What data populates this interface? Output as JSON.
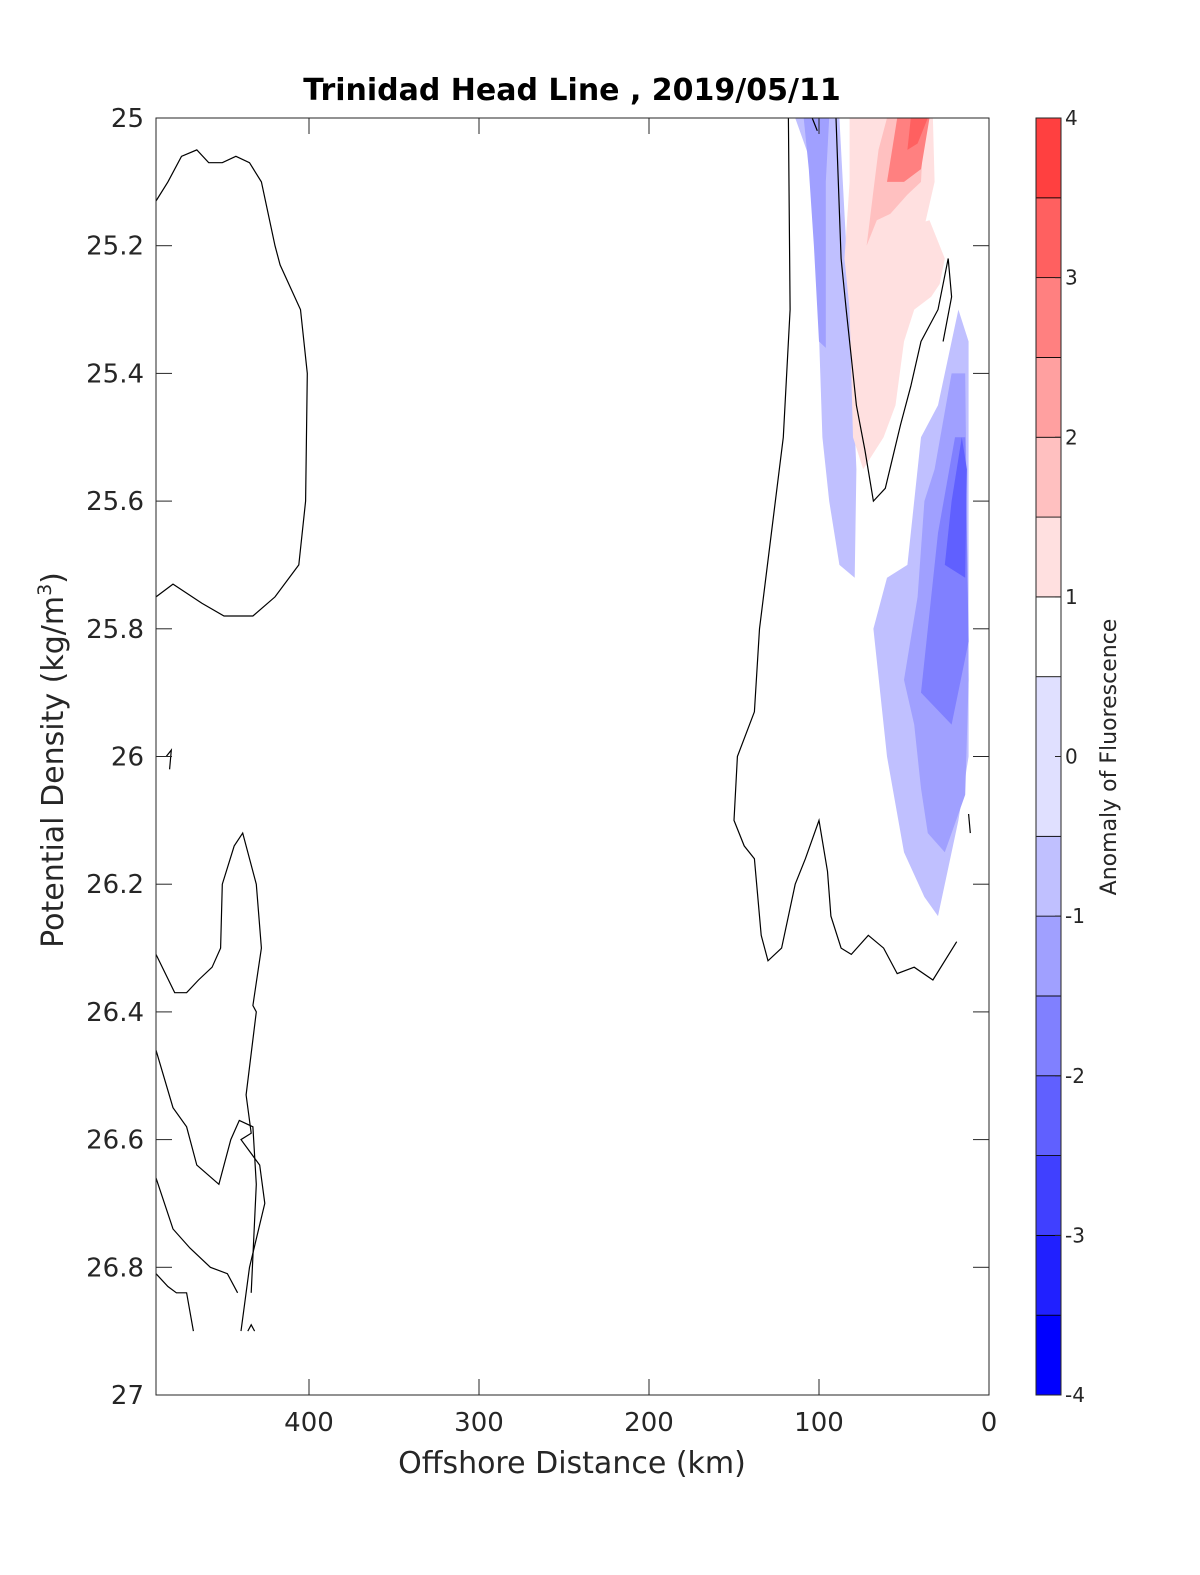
{
  "chart_data": {
    "type": "contour",
    "title": "Trinidad Head Line , 2019/05/11",
    "xlabel": "Offshore Distance (km)",
    "ylabel_main": "Potential Density (kg/m",
    "ylabel_sup": "3",
    "ylabel_close": ")",
    "xlim": [
      490,
      0
    ],
    "ylim": [
      25,
      27
    ],
    "x_reversed": true,
    "y_reversed": true,
    "xticks": [
      400,
      300,
      200,
      100,
      0
    ],
    "xtick_labels": [
      "400",
      "300",
      "200",
      "100",
      "0"
    ],
    "yticks": [
      25,
      25.2,
      25.4,
      25.6,
      25.8,
      26,
      26.2,
      26.4,
      26.6,
      26.8,
      27
    ],
    "ytick_labels": [
      "25",
      "25.2",
      "25.4",
      "25.6",
      "25.8",
      "26",
      "26.2",
      "26.4",
      "26.6",
      "26.8",
      "27"
    ],
    "colorbar": {
      "label": "Anomaly of Fluorescence",
      "range": [
        -4,
        4
      ],
      "ticks": [
        4,
        3,
        2,
        1,
        0,
        -1,
        -2,
        -3,
        -4
      ],
      "tick_labels": [
        "4",
        "3",
        "2",
        "1",
        "0",
        "-1",
        "-2",
        "-3",
        "-4"
      ],
      "level_edges": [
        -4,
        -3.5,
        -3,
        -2.5,
        -2,
        -1.5,
        -1,
        -0.5,
        0.5,
        1,
        1.5,
        2,
        2.5,
        3,
        3.5,
        4
      ],
      "level_colors": [
        "#0000ff",
        "#2020ff",
        "#4040ff",
        "#6060ff",
        "#8080ff",
        "#a0a0ff",
        "#c0c0ff",
        "#e0e0ff",
        "#ffffff",
        "#ffe0e0",
        "#ffc0c0",
        "#ffa0a0",
        "#ff8080",
        "#ff6060",
        "#ff4040",
        "#ff2020"
      ]
    },
    "filled_regions": [
      {
        "level": 0.75,
        "points": [
          [
            135,
            25
          ],
          [
            131,
            25.06
          ],
          [
            128,
            25
          ]
        ]
      },
      {
        "level": -0.75,
        "points": [
          [
            114,
            25
          ],
          [
            106,
            25.06
          ],
          [
            102,
            25.18
          ],
          [
            98,
            25.5
          ],
          [
            94,
            25.6
          ],
          [
            88,
            25.7
          ],
          [
            79,
            25.72
          ],
          [
            78,
            25.55
          ],
          [
            82,
            25.3
          ],
          [
            86,
            25.1
          ],
          [
            88,
            25
          ]
        ]
      },
      {
        "level": -1.25,
        "points": [
          [
            109,
            25
          ],
          [
            106,
            25.08
          ],
          [
            103,
            25.2
          ],
          [
            100,
            25.35
          ],
          [
            96,
            25.36
          ],
          [
            96,
            25.1
          ],
          [
            94,
            25
          ]
        ]
      },
      {
        "level": 1.25,
        "points": [
          [
            84,
            25.2
          ],
          [
            75,
            25.26
          ],
          [
            64,
            25.3
          ],
          [
            54,
            25.24
          ],
          [
            44,
            25.24
          ],
          [
            38,
            25.17
          ],
          [
            32,
            25.1
          ],
          [
            33,
            25
          ],
          [
            82,
            25
          ],
          [
            82,
            25.1
          ],
          [
            85,
            25.22
          ],
          [
            82,
            25.3
          ],
          [
            80,
            25.5
          ],
          [
            74,
            25.55
          ],
          [
            62,
            25.5
          ],
          [
            55,
            25.45
          ],
          [
            50,
            25.35
          ],
          [
            44,
            25.3
          ],
          [
            34,
            25.28
          ],
          [
            29,
            25.26
          ],
          [
            26,
            25.22
          ],
          [
            35,
            25.16
          ]
        ]
      },
      {
        "level": 1.75,
        "points": [
          [
            72,
            25.2
          ],
          [
            66,
            25.16
          ],
          [
            58,
            25.15
          ],
          [
            48,
            25.12
          ],
          [
            40,
            25.1
          ],
          [
            38,
            25
          ],
          [
            60,
            25
          ],
          [
            65,
            25.05
          ]
        ]
      },
      {
        "level": 2.75,
        "points": [
          [
            60,
            25.1
          ],
          [
            50,
            25.1
          ],
          [
            40,
            25.08
          ],
          [
            35,
            25
          ],
          [
            54,
            25
          ]
        ]
      },
      {
        "level": 3.25,
        "points": [
          [
            48,
            25.05
          ],
          [
            42,
            25.04
          ],
          [
            36,
            25
          ],
          [
            46,
            25
          ]
        ]
      },
      {
        "level": -0.75,
        "points": [
          [
            68,
            25.8
          ],
          [
            60,
            25.72
          ],
          [
            48,
            25.7
          ],
          [
            40,
            25.5
          ],
          [
            30,
            25.45
          ],
          [
            18,
            25.3
          ],
          [
            12,
            25.35
          ],
          [
            12,
            26.0
          ],
          [
            18,
            26.1
          ],
          [
            30,
            26.25
          ],
          [
            38,
            26.22
          ],
          [
            50,
            26.15
          ],
          [
            60,
            26.0
          ]
        ]
      },
      {
        "level": -1.25,
        "points": [
          [
            50,
            25.88
          ],
          [
            42,
            25.75
          ],
          [
            38,
            25.6
          ],
          [
            32,
            25.55
          ],
          [
            22,
            25.4
          ],
          [
            14,
            25.4
          ],
          [
            12,
            25.88
          ],
          [
            14,
            26.06
          ],
          [
            26,
            26.15
          ],
          [
            36,
            26.12
          ],
          [
            40,
            26.05
          ],
          [
            44,
            25.95
          ]
        ]
      },
      {
        "level": -1.75,
        "points": [
          [
            40,
            25.9
          ],
          [
            36,
            25.8
          ],
          [
            30,
            25.65
          ],
          [
            20,
            25.5
          ],
          [
            14,
            25.5
          ],
          [
            12,
            25.82
          ],
          [
            22,
            25.95
          ]
        ]
      },
      {
        "level": -2.25,
        "points": [
          [
            26,
            25.7
          ],
          [
            22,
            25.6
          ],
          [
            16,
            25.5
          ],
          [
            13,
            25.55
          ],
          [
            14,
            25.72
          ]
        ]
      }
    ],
    "contour_lines": [
      [
        [
          490,
          25.13
        ],
        [
          483,
          25.1
        ],
        [
          475,
          25.06
        ],
        [
          466,
          25.05
        ],
        [
          459,
          25.07
        ],
        [
          451,
          25.07
        ],
        [
          443,
          25.06
        ],
        [
          435,
          25.07
        ],
        [
          428,
          25.1
        ],
        [
          420,
          25.2
        ],
        [
          417,
          25.23
        ],
        [
          405,
          25.3
        ],
        [
          401,
          25.4
        ],
        [
          402,
          25.6
        ],
        [
          406,
          25.7
        ],
        [
          420,
          25.75
        ],
        [
          433,
          25.78
        ],
        [
          450,
          25.78
        ],
        [
          463,
          25.76
        ],
        [
          480,
          25.73
        ],
        [
          490,
          25.75
        ]
      ],
      [
        [
          484,
          26.0
        ],
        [
          481,
          25.99
        ],
        [
          482,
          26.02
        ]
      ],
      [
        [
          490,
          26.31
        ],
        [
          479,
          26.37
        ],
        [
          472,
          26.37
        ],
        [
          465,
          26.35
        ],
        [
          457,
          26.33
        ],
        [
          452,
          26.3
        ],
        [
          451,
          26.2
        ],
        [
          444,
          26.14
        ],
        [
          439,
          26.12
        ],
        [
          431,
          26.2
        ],
        [
          428,
          26.3
        ],
        [
          433,
          26.39
        ],
        [
          431,
          26.4
        ],
        [
          437,
          26.53
        ],
        [
          434,
          26.59
        ],
        [
          440,
          26.6
        ],
        [
          429,
          26.64
        ],
        [
          426,
          26.7
        ],
        [
          435,
          26.8
        ],
        [
          440,
          26.9
        ]
      ],
      [
        [
          490,
          26.46
        ],
        [
          480,
          26.55
        ],
        [
          472,
          26.58
        ],
        [
          466,
          26.64
        ],
        [
          453,
          26.67
        ],
        [
          446,
          26.6
        ],
        [
          441,
          26.57
        ],
        [
          433,
          26.58
        ],
        [
          431,
          26.67
        ],
        [
          434,
          26.84
        ]
      ],
      [
        [
          490,
          26.66
        ],
        [
          480,
          26.74
        ],
        [
          470,
          26.77
        ],
        [
          458,
          26.8
        ],
        [
          448,
          26.81
        ],
        [
          442,
          26.84
        ]
      ],
      [
        [
          490,
          26.81
        ],
        [
          483,
          26.83
        ],
        [
          478,
          26.84
        ],
        [
          472,
          26.84
        ],
        [
          468,
          26.9
        ]
      ],
      [
        [
          436,
          26.9
        ],
        [
          434,
          26.89
        ],
        [
          432,
          26.9
        ]
      ],
      [
        [
          118,
          25
        ],
        [
          117,
          25.3
        ],
        [
          121,
          25.5
        ],
        [
          128,
          25.65
        ],
        [
          135,
          25.8
        ],
        [
          138,
          25.93
        ],
        [
          148,
          26.0
        ],
        [
          150,
          26.1
        ],
        [
          144,
          26.14
        ],
        [
          138,
          26.16
        ],
        [
          134,
          26.28
        ],
        [
          130,
          26.32
        ],
        [
          122,
          26.3
        ],
        [
          114,
          26.2
        ],
        [
          108,
          26.16
        ],
        [
          100,
          26.1
        ],
        [
          95,
          26.18
        ],
        [
          93,
          26.25
        ],
        [
          87,
          26.3
        ],
        [
          81,
          26.31
        ],
        [
          71,
          26.28
        ],
        [
          62,
          26.3
        ],
        [
          54,
          26.34
        ],
        [
          44,
          26.33
        ],
        [
          33,
          26.35
        ],
        [
          19,
          26.29
        ]
      ],
      [
        [
          104,
          25
        ],
        [
          101,
          25.02
        ]
      ],
      [
        [
          90,
          25
        ],
        [
          87,
          25.22
        ],
        [
          84,
          25.3
        ],
        [
          78,
          25.45
        ],
        [
          73,
          25.52
        ],
        [
          68,
          25.6
        ],
        [
          61,
          25.58
        ],
        [
          52,
          25.48
        ],
        [
          46,
          25.42
        ],
        [
          40,
          25.35
        ],
        [
          30,
          25.3
        ],
        [
          24,
          25.22
        ],
        [
          22,
          25.28
        ],
        [
          27,
          25.35
        ]
      ],
      [
        [
          12,
          26.09
        ],
        [
          11,
          26.12
        ]
      ]
    ]
  }
}
